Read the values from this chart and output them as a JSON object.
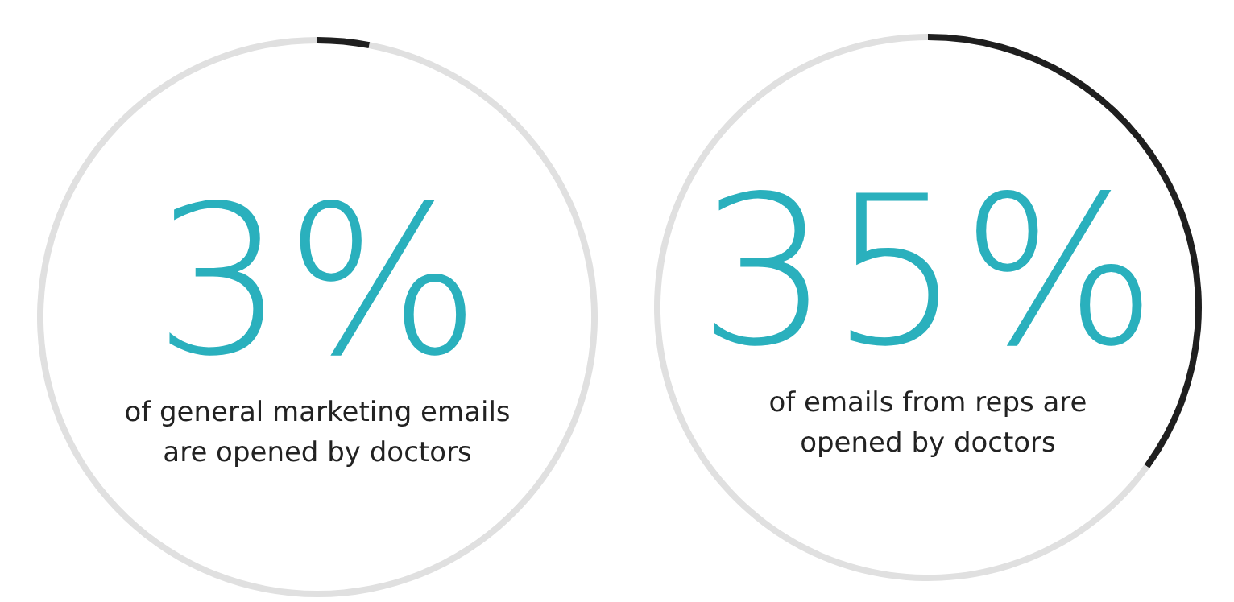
{
  "chart_data": [
    {
      "type": "donut",
      "categories": [
        null,
        null
      ],
      "values": [
        3,
        97
      ],
      "colors": [
        "#1f1f1f",
        "#e0e0e0"
      ],
      "value_labels": [
        "3%",
        null
      ],
      "annotations": [
        "of general marketing emails are opened by doctors"
      ],
      "legend": false
    },
    {
      "type": "donut",
      "categories": [
        null,
        null
      ],
      "values": [
        35,
        65
      ],
      "colors": [
        "#1f1f1f",
        "#e0e0e0"
      ],
      "value_labels": [
        "35%",
        null
      ],
      "annotations": [
        "of emails from reps are opened by doctors"
      ],
      "legend": false
    }
  ]
}
